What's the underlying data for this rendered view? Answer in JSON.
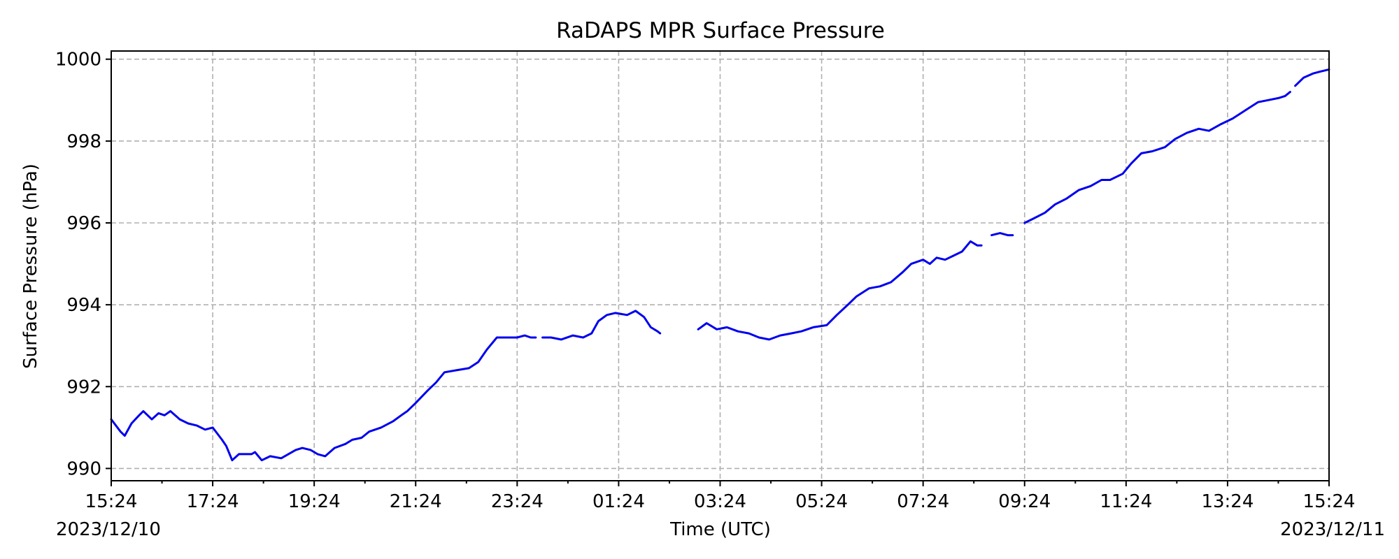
{
  "chart_data": {
    "type": "line",
    "title": "RaDAPS MPR Surface Pressure",
    "xlabel": "Time (UTC)",
    "ylabel": "Surface Pressure (hPa)",
    "ylim": [
      989.7,
      1000.2
    ],
    "xlim": [
      "2023-12-10 15:24",
      "2023-12-11 15:24"
    ],
    "grid": true,
    "x_ticks": [
      "15:24",
      "17:24",
      "19:24",
      "21:24",
      "23:24",
      "01:24",
      "03:24",
      "05:24",
      "07:24",
      "09:24",
      "11:24",
      "13:24",
      "15:24"
    ],
    "x_date_start": "2023/12/10",
    "x_date_end": "2023/12/11",
    "y_ticks": [
      990,
      992,
      994,
      996,
      998,
      1000
    ],
    "line_color": "#0000ee",
    "segments": [
      {
        "x": [
          "2023-12-10 15:24",
          "2023-12-10 15:35",
          "2023-12-10 15:40",
          "2023-12-10 15:48",
          "2023-12-10 15:57",
          "2023-12-10 16:02",
          "2023-12-10 16:12",
          "2023-12-10 16:20",
          "2023-12-10 16:27",
          "2023-12-10 16:34",
          "2023-12-10 16:45",
          "2023-12-10 16:55",
          "2023-12-10 17:05",
          "2023-12-10 17:15",
          "2023-12-10 17:24",
          "2023-12-10 17:35",
          "2023-12-10 17:40",
          "2023-12-10 17:47",
          "2023-12-10 17:55",
          "2023-12-10 18:10",
          "2023-12-10 18:14",
          "2023-12-10 18:22",
          "2023-12-10 18:32",
          "2023-12-10 18:45",
          "2023-12-10 19:02",
          "2023-12-10 19:10",
          "2023-12-10 19:20",
          "2023-12-10 19:28",
          "2023-12-10 19:37",
          "2023-12-10 19:48",
          "2023-12-10 20:01",
          "2023-12-10 20:09",
          "2023-12-10 20:20",
          "2023-12-10 20:29",
          "2023-12-10 20:43",
          "2023-12-10 20:57",
          "2023-12-10 21:07",
          "2023-12-10 21:14",
          "2023-12-10 21:24",
          "2023-12-10 21:38",
          "2023-12-10 21:48",
          "2023-12-10 21:58",
          "2023-12-10 22:12",
          "2023-12-10 22:27",
          "2023-12-10 22:38",
          "2023-12-10 22:48",
          "2023-12-10 23:00",
          "2023-12-10 23:09",
          "2023-12-10 23:24",
          "2023-12-10 23:33",
          "2023-12-10 23:40",
          "2023-12-10 23:46"
        ],
        "y": [
          991.2,
          990.9,
          990.8,
          991.1,
          991.3,
          991.4,
          991.2,
          991.35,
          991.3,
          991.4,
          991.2,
          991.1,
          991.05,
          990.95,
          991.0,
          990.7,
          990.55,
          990.2,
          990.35,
          990.35,
          990.4,
          990.2,
          990.3,
          990.25,
          990.45,
          990.5,
          990.45,
          990.35,
          990.3,
          990.5,
          990.6,
          990.7,
          990.75,
          990.9,
          991.0,
          991.15,
          991.3,
          991.4,
          991.6,
          991.9,
          992.1,
          992.35,
          992.4,
          992.45,
          992.6,
          992.9,
          993.2,
          993.2,
          993.2,
          993.25,
          993.2,
          993.2
        ]
      },
      {
        "x": [
          "2023-12-10 23:54",
          "2023-12-11 00:04",
          "2023-12-11 00:16",
          "2023-12-11 00:30",
          "2023-12-11 00:42",
          "2023-12-11 00:52",
          "2023-12-11 01:00",
          "2023-12-11 01:10",
          "2023-12-11 01:20",
          "2023-12-11 01:34",
          "2023-12-11 01:44",
          "2023-12-11 01:54",
          "2023-12-11 02:02",
          "2023-12-11 02:10",
          "2023-12-11 02:13"
        ],
        "y": [
          993.2,
          993.2,
          993.15,
          993.25,
          993.2,
          993.3,
          993.6,
          993.75,
          993.8,
          993.75,
          993.85,
          993.7,
          993.45,
          993.35,
          993.3
        ]
      },
      {
        "x": [
          "2023-12-11 02:58",
          "2023-12-11 03:08",
          "2023-12-11 03:20",
          "2023-12-11 03:32",
          "2023-12-11 03:45",
          "2023-12-11 03:58",
          "2023-12-11 04:10",
          "2023-12-11 04:22",
          "2023-12-11 04:35",
          "2023-12-11 04:48",
          "2023-12-11 05:00",
          "2023-12-11 05:14",
          "2023-12-11 05:30",
          "2023-12-11 05:42",
          "2023-12-11 05:55",
          "2023-12-11 06:05",
          "2023-12-11 06:20",
          "2023-12-11 06:33",
          "2023-12-11 06:46",
          "2023-12-11 07:00",
          "2023-12-11 07:10",
          "2023-12-11 07:24",
          "2023-12-11 07:32",
          "2023-12-11 07:40",
          "2023-12-11 07:50",
          "2023-12-11 08:00",
          "2023-12-11 08:10",
          "2023-12-11 08:20",
          "2023-12-11 08:28",
          "2023-12-11 08:33"
        ],
        "y": [
          993.4,
          993.55,
          993.4,
          993.45,
          993.35,
          993.3,
          993.2,
          993.15,
          993.25,
          993.3,
          993.35,
          993.45,
          993.5,
          993.75,
          994.0,
          994.2,
          994.4,
          994.45,
          994.55,
          994.8,
          995.0,
          995.1,
          995.0,
          995.15,
          995.1,
          995.2,
          995.3,
          995.55,
          995.45,
          995.45
        ]
      },
      {
        "x": [
          "2023-12-11 08:45",
          "2023-12-11 08:55",
          "2023-12-11 09:04",
          "2023-12-11 09:10"
        ],
        "y": [
          995.7,
          995.75,
          995.7,
          995.7
        ]
      },
      {
        "x": [
          "2023-12-11 09:24",
          "2023-12-11 09:34",
          "2023-12-11 09:48",
          "2023-12-11 10:00",
          "2023-12-11 10:14",
          "2023-12-11 10:28",
          "2023-12-11 10:42",
          "2023-12-11 10:55",
          "2023-12-11 11:05",
          "2023-12-11 11:20",
          "2023-12-11 11:30",
          "2023-12-11 11:42",
          "2023-12-11 11:55",
          "2023-12-11 12:10",
          "2023-12-11 12:22",
          "2023-12-11 12:36",
          "2023-12-11 12:50",
          "2023-12-11 13:02",
          "2023-12-11 13:15",
          "2023-12-11 13:30",
          "2023-12-11 13:45",
          "2023-12-11 14:00",
          "2023-12-11 14:12",
          "2023-12-11 14:24",
          "2023-12-11 14:32",
          "2023-12-11 14:38"
        ],
        "y": [
          996.0,
          996.1,
          996.25,
          996.45,
          996.6,
          996.8,
          996.9,
          997.05,
          997.05,
          997.2,
          997.45,
          997.7,
          997.75,
          997.85,
          998.05,
          998.2,
          998.3,
          998.25,
          998.4,
          998.55,
          998.75,
          998.95,
          999.0,
          999.05,
          999.1,
          999.2
        ]
      },
      {
        "x": [
          "2023-12-11 14:44",
          "2023-12-11 14:54",
          "2023-12-11 15:05",
          "2023-12-11 15:14",
          "2023-12-11 15:24"
        ],
        "y": [
          999.35,
          999.55,
          999.65,
          999.7,
          999.75
        ]
      }
    ]
  }
}
